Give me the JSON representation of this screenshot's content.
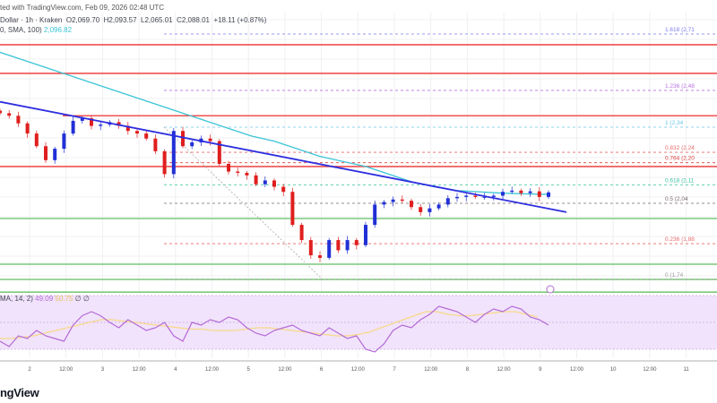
{
  "header": {
    "published": "ted with TradingView.com, Feb 09, 2026 02:48 UTC",
    "symbol": "Dollar · 1h · Kraken",
    "open": "O2,069.70",
    "high": "H2,093.57",
    "low": "L2,065.01",
    "close": "C2,088.01",
    "change": "+18.11 (+0.87%)",
    "sma_label": "0, SMA, 100)",
    "sma_value": "2,096.82"
  },
  "rsi_legend": {
    "label": "MA, 14, 2)",
    "rsi": "49.09",
    "ma": "50.75",
    "extra": "∅ ∅"
  },
  "footer": {
    "logo": "ngView"
  },
  "colors": {
    "up": "#2130d6",
    "down": "#e01e1e",
    "sma": "#3bc4d6",
    "trend": "#2e2ee0",
    "resistance": "#f05050",
    "support": "#7cc97c",
    "rsi": "#b36ad6",
    "rsi_ma": "#f7d98a",
    "rsi_band": "#f1e3fb"
  },
  "chart_data": {
    "type": "candlestick",
    "interval": "3h",
    "x_tick_labels": [
      "2",
      "12:00",
      "3",
      "12:00",
      "4",
      "12:00",
      "5",
      "12:00",
      "6",
      "12:00",
      "7",
      "12:00",
      "8",
      "12:00",
      "9",
      "12:00",
      "10",
      "12:00",
      "11"
    ],
    "closes": [
      2400,
      2390,
      2360,
      2320,
      2270,
      2215,
      2260,
      2320,
      2370,
      2380,
      2350,
      2355,
      2365,
      2350,
      2330,
      2320,
      2300,
      2250,
      2160,
      2330,
      2270,
      2285,
      2300,
      2290,
      2200,
      2170,
      2165,
      2155,
      2120,
      2135,
      2110,
      2090,
      1960,
      1900,
      1840,
      1830,
      1900,
      1860,
      1900,
      1880,
      1960,
      2040,
      2050,
      2060,
      2055,
      2030,
      2010,
      2025,
      2040,
      2065,
      2070,
      2075,
      2070,
      2070,
      2075,
      2090,
      2095,
      2085,
      2092,
      2070,
      2088
    ],
    "sma_100": [
      2640,
      2610,
      2580,
      2550,
      2520,
      2490,
      2460,
      2430,
      2400,
      2370,
      2340,
      2310,
      2290,
      2260,
      2230,
      2210,
      2190,
      2160,
      2130,
      2110,
      2095,
      2090,
      2085,
      2082,
      2080
    ],
    "trendline": {
      "start": 2445,
      "end": 2010
    },
    "horizontal_resistance": [
      2670,
      2557,
      2390,
      2190
    ],
    "horizontal_support": [
      1985,
      1805,
      1745,
      1695
    ],
    "fibonacci": [
      {
        "level": "1.618",
        "label": "1.618 (2,71",
        "price": 2712,
        "color": "#7b7bf0"
      },
      {
        "level": "1.236",
        "label": "1.236 (2,48",
        "price": 2490,
        "color": "#b870e0"
      },
      {
        "level": "1",
        "label": "1 (2,34",
        "price": 2345,
        "color": "#6cc7e8"
      },
      {
        "level": "0.832",
        "label": "0.832 (2,24",
        "price": 2246,
        "color": "#e86a6a"
      },
      {
        "level": "0.764",
        "label": "0.764 (2,20",
        "price": 2205,
        "color": "#e04040"
      },
      {
        "level": "0.618",
        "label": "0.618 (2,11",
        "price": 2117,
        "color": "#39c4a0"
      },
      {
        "level": "0.5",
        "label": "0.5 (2,04",
        "price": 2045,
        "color": "#7a6a6a"
      },
      {
        "level": "0.236",
        "label": "0.236 (1,88",
        "price": 1886,
        "color": "#e86a6a"
      },
      {
        "level": "0",
        "label": "0 (1,74",
        "price": 1745,
        "color": "#999999"
      }
    ],
    "rsi": [
      36,
      32,
      40,
      38,
      44,
      40,
      38,
      36,
      48,
      55,
      58,
      55,
      50,
      46,
      52,
      48,
      44,
      46,
      50,
      40,
      36,
      50,
      48,
      52,
      50,
      54,
      52,
      46,
      42,
      40,
      44,
      46,
      48,
      44,
      42,
      40,
      46,
      42,
      38,
      40,
      30,
      28,
      34,
      44,
      48,
      46,
      52,
      56,
      62,
      60,
      58,
      54,
      50,
      56,
      60,
      58,
      62,
      60,
      54,
      52,
      48
    ],
    "rsi_ma": [
      38,
      38,
      39,
      40,
      42,
      44,
      46,
      48,
      50,
      52,
      52,
      51,
      50,
      49,
      48,
      47,
      46,
      45,
      45,
      44,
      44,
      44,
      45,
      46,
      46,
      45,
      44,
      43,
      42,
      41,
      40,
      40,
      41,
      43,
      46,
      49,
      52,
      55,
      58,
      58,
      56,
      55,
      55,
      56,
      57,
      58,
      58,
      56,
      54
    ],
    "rsi_levels": [
      70,
      50,
      30
    ]
  }
}
